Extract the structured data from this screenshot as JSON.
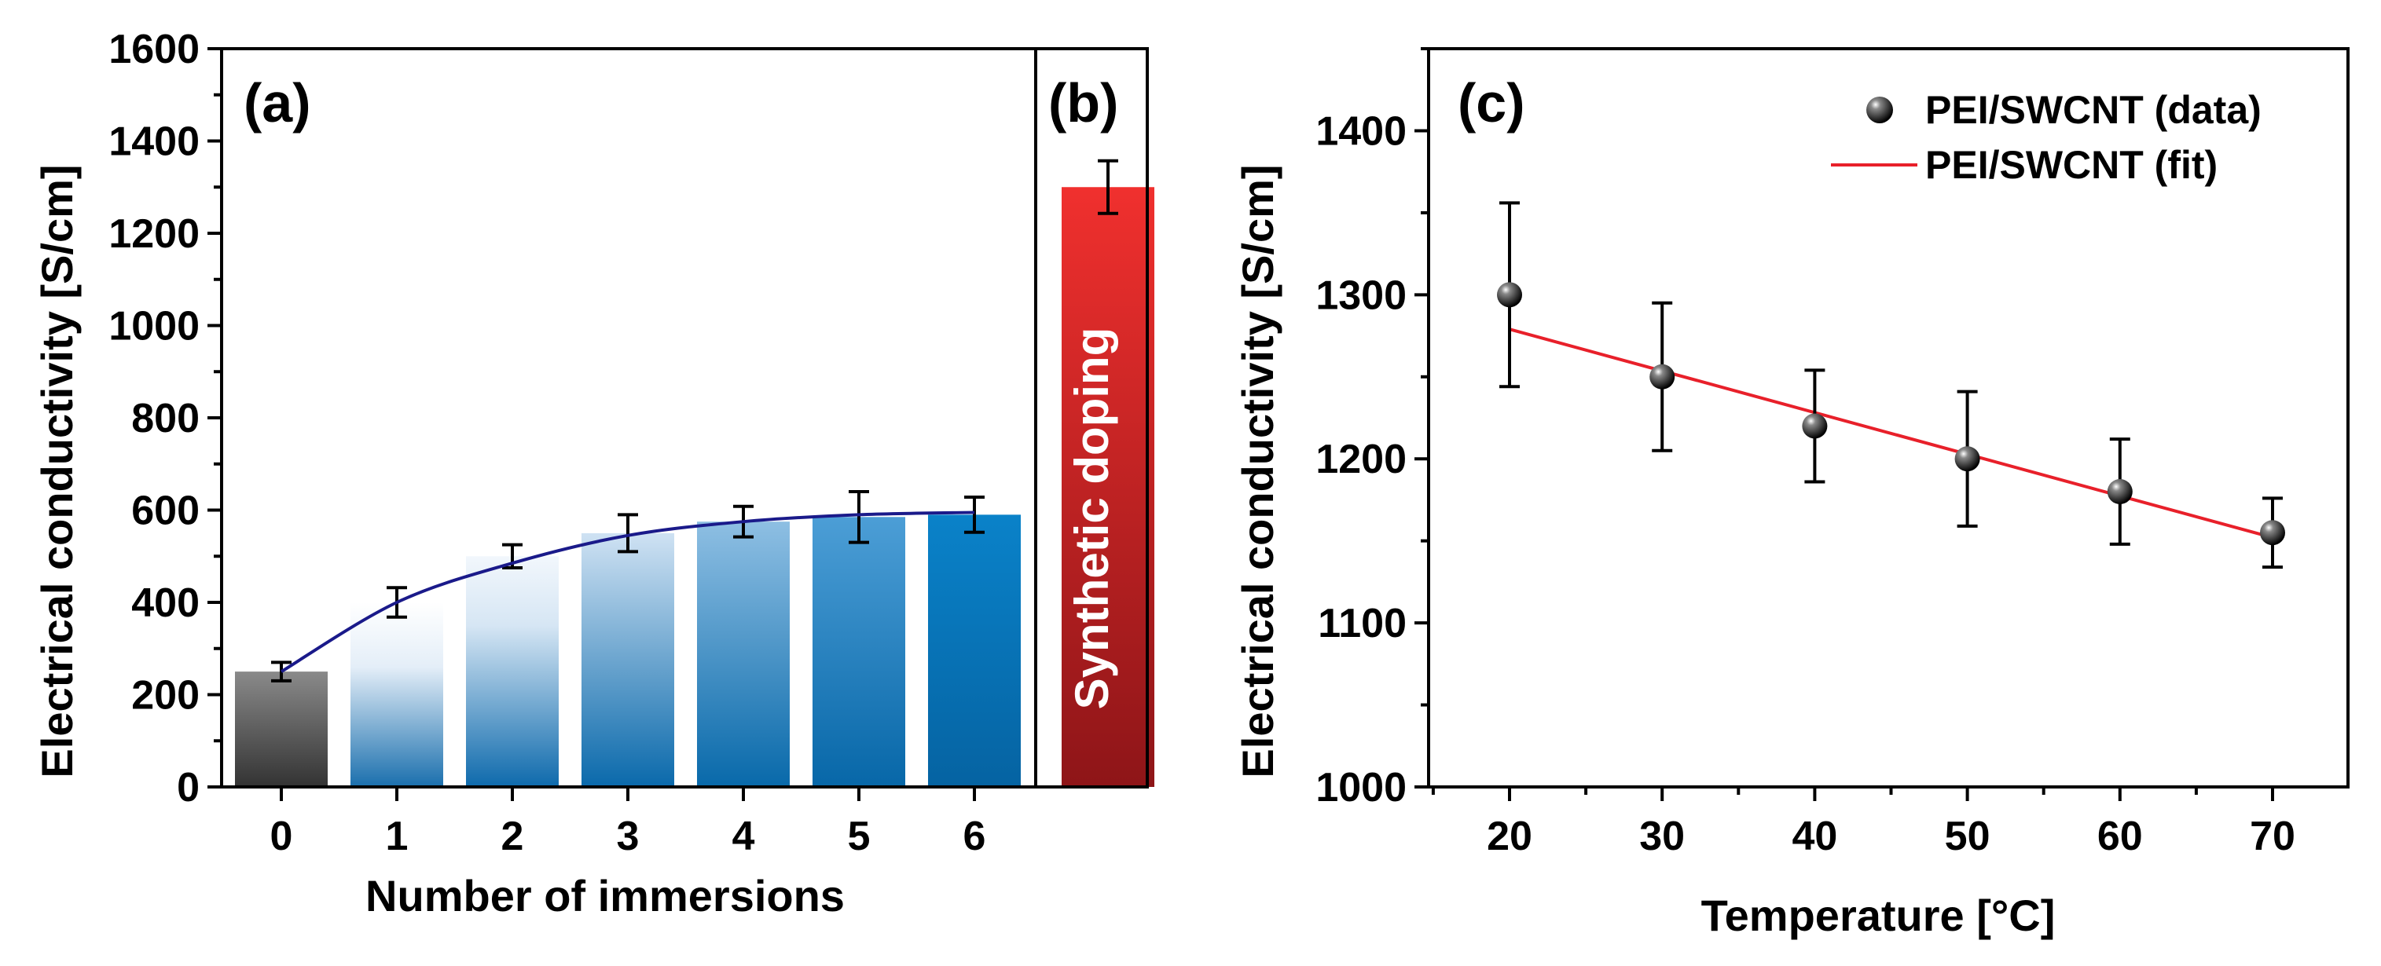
{
  "chart_data": [
    {
      "panel": "(a)",
      "type": "bar",
      "xlabel": "Number of immersions",
      "ylabel": "Electrical conductivity [S/cm]",
      "ylim": [
        0,
        1600
      ],
      "yticks": [
        0,
        200,
        400,
        600,
        800,
        1000,
        1200,
        1400,
        1600
      ],
      "categories": [
        "0",
        "1",
        "2",
        "3",
        "4",
        "5",
        "6"
      ],
      "values": [
        250,
        400,
        500,
        550,
        575,
        585,
        590
      ],
      "errors": [
        20,
        32,
        25,
        40,
        33,
        55,
        38
      ],
      "fit_curve": [
        {
          "x": 0,
          "y": 250
        },
        {
          "x": 1,
          "y": 400
        },
        {
          "x": 2,
          "y": 485
        },
        {
          "x": 3,
          "y": 545
        },
        {
          "x": 4,
          "y": 575
        },
        {
          "x": 5,
          "y": 590
        },
        {
          "x": 6,
          "y": 595
        }
      ],
      "colors": {
        "bar0": "#3a3a3a",
        "bars": "#0a72b8",
        "fit": "#1a1a8a"
      }
    },
    {
      "panel": "(b)",
      "type": "bar",
      "categories": [
        "Synthetic doping"
      ],
      "values": [
        1300
      ],
      "errors": [
        57
      ],
      "bar_label": "Synthetic doping",
      "colors": {
        "top": "#f0302e",
        "bottom": "#8e1518"
      }
    },
    {
      "panel": "(c)",
      "type": "scatter",
      "xlabel": "Temperature [°C]",
      "ylabel": "Electrical conductivity [S/cm]",
      "xlim": [
        15,
        75
      ],
      "ylim": [
        1000,
        1450
      ],
      "xticks": [
        20,
        30,
        40,
        50,
        60,
        70
      ],
      "yticks": [
        1000,
        1100,
        1200,
        1300,
        1400
      ],
      "series": [
        {
          "name": "PEI/SWCNT (data)",
          "x": [
            20,
            30,
            40,
            50,
            60,
            70
          ],
          "y": [
            1300,
            1250,
            1220,
            1200,
            1180,
            1155
          ],
          "errors": [
            56,
            45,
            34,
            41,
            32,
            21
          ]
        },
        {
          "name": "PEI/SWCNT (fit)",
          "x": [
            20,
            70
          ],
          "y": [
            1279,
            1152
          ],
          "color": "#e8202a"
        }
      ]
    }
  ]
}
